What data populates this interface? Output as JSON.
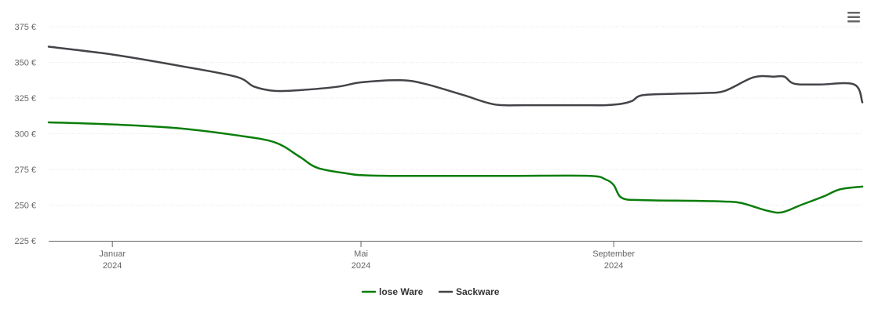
{
  "chart_data": {
    "type": "line",
    "title": "",
    "xlabel": "",
    "ylabel": "",
    "ylim": [
      225,
      375
    ],
    "xlim": [
      "2023-12-01",
      "2024-12-31"
    ],
    "y_ticks": [
      {
        "value": 225,
        "label": "225 €"
      },
      {
        "value": 250,
        "label": "250 €"
      },
      {
        "value": 275,
        "label": "275 €"
      },
      {
        "value": 300,
        "label": "300 €"
      },
      {
        "value": 325,
        "label": "325 €"
      },
      {
        "value": 350,
        "label": "350 €"
      },
      {
        "value": 375,
        "label": "375 €"
      }
    ],
    "x_ticks": [
      {
        "date": "2024-01-01",
        "label1": "Januar",
        "label2": "2024"
      },
      {
        "date": "2024-05-01",
        "label1": "Mai",
        "label2": "2024"
      },
      {
        "date": "2024-09-01",
        "label1": "September",
        "label2": "2024"
      }
    ],
    "grid": true,
    "legend_position": "bottom-center",
    "series": [
      {
        "name": "lose Ware",
        "color": "#0a7d0a",
        "points": [
          [
            "2023-12-01",
            308
          ],
          [
            "2024-01-01",
            306.5
          ],
          [
            "2024-02-01",
            304
          ],
          [
            "2024-03-01",
            299
          ],
          [
            "2024-03-20",
            294
          ],
          [
            "2024-04-01",
            284
          ],
          [
            "2024-04-10",
            276
          ],
          [
            "2024-04-25",
            272
          ],
          [
            "2024-05-01",
            271
          ],
          [
            "2024-05-15",
            270.5
          ],
          [
            "2024-06-15",
            270.5
          ],
          [
            "2024-07-15",
            270.5
          ],
          [
            "2024-08-20",
            270.5
          ],
          [
            "2024-08-28",
            268
          ],
          [
            "2024-09-01",
            264
          ],
          [
            "2024-09-05",
            255
          ],
          [
            "2024-09-15",
            253.5
          ],
          [
            "2024-10-10",
            253
          ],
          [
            "2024-10-25",
            252.5
          ],
          [
            "2024-11-02",
            251.5
          ],
          [
            "2024-11-15",
            246
          ],
          [
            "2024-11-22",
            245
          ],
          [
            "2024-12-01",
            250
          ],
          [
            "2024-12-12",
            256
          ],
          [
            "2024-12-20",
            261
          ],
          [
            "2024-12-31",
            263
          ]
        ]
      },
      {
        "name": "Sackware",
        "color": "#434348",
        "points": [
          [
            "2023-12-01",
            361
          ],
          [
            "2024-01-01",
            355.5
          ],
          [
            "2024-02-01",
            348
          ],
          [
            "2024-03-01",
            340
          ],
          [
            "2024-03-10",
            333
          ],
          [
            "2024-03-20",
            330
          ],
          [
            "2024-04-01",
            330.5
          ],
          [
            "2024-04-20",
            333
          ],
          [
            "2024-05-01",
            336
          ],
          [
            "2024-05-20",
            337.5
          ],
          [
            "2024-06-01",
            335
          ],
          [
            "2024-06-20",
            327
          ],
          [
            "2024-07-05",
            320.5
          ],
          [
            "2024-07-20",
            320
          ],
          [
            "2024-08-15",
            320
          ],
          [
            "2024-08-28",
            320
          ],
          [
            "2024-09-05",
            321
          ],
          [
            "2024-09-10",
            323
          ],
          [
            "2024-09-15",
            327
          ],
          [
            "2024-10-01",
            328
          ],
          [
            "2024-10-15",
            328.5
          ],
          [
            "2024-10-25",
            330
          ],
          [
            "2024-11-08",
            339.5
          ],
          [
            "2024-11-18",
            340
          ],
          [
            "2024-11-23",
            340
          ],
          [
            "2024-11-28",
            335
          ],
          [
            "2024-12-10",
            334.5
          ],
          [
            "2024-12-27",
            334.5
          ],
          [
            "2024-12-31",
            322
          ]
        ]
      }
    ]
  },
  "colors": {
    "axis": "#666666",
    "grid": "#e6e6e6",
    "menu": "#666666"
  },
  "menu": {
    "icon": "hamburger-menu-icon"
  }
}
